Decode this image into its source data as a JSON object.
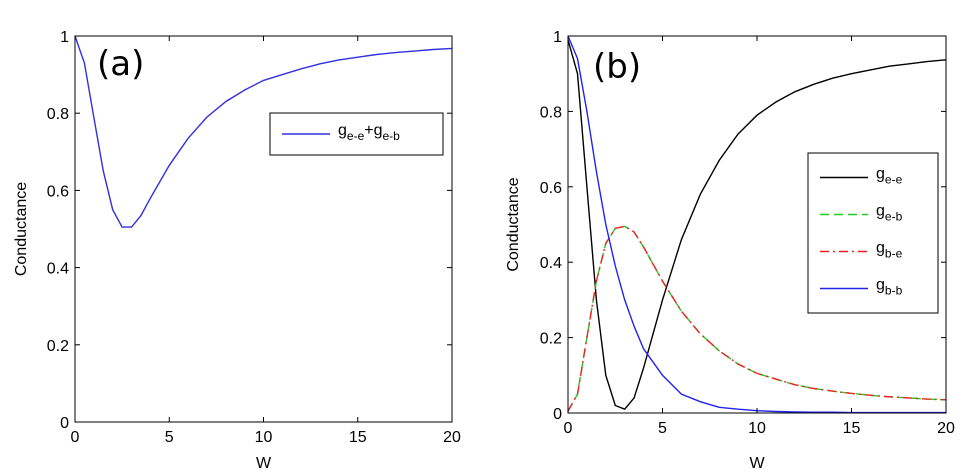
{
  "chart_data": [
    {
      "type": "line",
      "panel_label": "(a)",
      "xlabel": "W",
      "ylabel": "Conductance",
      "xlim": [
        0,
        20
      ],
      "ylim": [
        0,
        1
      ],
      "xticks": [
        "0",
        "5",
        "10",
        "15",
        "20"
      ],
      "yticks": [
        "0",
        "0.2",
        "0.4",
        "0.6",
        "0.8",
        "1"
      ],
      "grid": false,
      "legend_position": "upper-right",
      "series": [
        {
          "name": "g_{e-e}+g_{e-b}",
          "legend_parts": [
            "g",
            "e-e",
            "+g",
            "e-b"
          ],
          "color": "#3030e0",
          "dash": "solid",
          "x": [
            0,
            0.5,
            1,
            1.5,
            2,
            2.5,
            3,
            3.5,
            4,
            5,
            6,
            7,
            8,
            9,
            10,
            11,
            12,
            13,
            14,
            15,
            16,
            17,
            18,
            19,
            20
          ],
          "y": [
            1.0,
            0.93,
            0.79,
            0.65,
            0.55,
            0.505,
            0.505,
            0.535,
            0.58,
            0.665,
            0.735,
            0.79,
            0.83,
            0.86,
            0.885,
            0.9,
            0.915,
            0.928,
            0.938,
            0.945,
            0.952,
            0.957,
            0.961,
            0.965,
            0.968
          ]
        }
      ]
    },
    {
      "type": "line",
      "panel_label": "(b)",
      "xlabel": "W",
      "ylabel": "Conductance",
      "xlim": [
        0,
        20
      ],
      "ylim": [
        0,
        1
      ],
      "xticks": [
        "0",
        "5",
        "10",
        "15",
        "20"
      ],
      "yticks": [
        "0",
        "0.2",
        "0.4",
        "0.6",
        "0.8",
        "1"
      ],
      "grid": false,
      "legend_position": "right",
      "series": [
        {
          "name": "g_{e-e}",
          "legend_parts": [
            "g",
            "e-e"
          ],
          "color": "#000000",
          "dash": "solid",
          "x": [
            0,
            0.5,
            1,
            1.5,
            2,
            2.5,
            3,
            3.5,
            4,
            5,
            6,
            7,
            8,
            9,
            10,
            11,
            12,
            13,
            14,
            15,
            16,
            17,
            18,
            19,
            20
          ],
          "y": [
            0.99,
            0.9,
            0.6,
            0.3,
            0.1,
            0.02,
            0.01,
            0.04,
            0.12,
            0.3,
            0.46,
            0.58,
            0.67,
            0.74,
            0.79,
            0.825,
            0.852,
            0.872,
            0.888,
            0.9,
            0.91,
            0.92,
            0.926,
            0.932,
            0.937
          ]
        },
        {
          "name": "g_{e-b}",
          "legend_parts": [
            "g",
            "e-b"
          ],
          "color": "#22cc22",
          "dash": "dashed",
          "x": [
            0,
            0.5,
            1,
            1.5,
            2,
            2.5,
            3,
            3.5,
            4,
            5,
            6,
            7,
            8,
            9,
            10,
            11,
            12,
            13,
            14,
            15,
            16,
            17,
            18,
            19,
            20
          ],
          "y": [
            0.005,
            0.05,
            0.2,
            0.35,
            0.45,
            0.49,
            0.495,
            0.48,
            0.44,
            0.35,
            0.27,
            0.21,
            0.165,
            0.13,
            0.105,
            0.09,
            0.075,
            0.065,
            0.058,
            0.052,
            0.047,
            0.043,
            0.04,
            0.037,
            0.035
          ]
        },
        {
          "name": "g_{b-e}",
          "legend_parts": [
            "g",
            "b-e"
          ],
          "color": "#ee2222",
          "dash": "dashdot",
          "x": [
            0,
            0.5,
            1,
            1.5,
            2,
            2.5,
            3,
            3.5,
            4,
            5,
            6,
            7,
            8,
            9,
            10,
            11,
            12,
            13,
            14,
            15,
            16,
            17,
            18,
            19,
            20
          ],
          "y": [
            0.005,
            0.05,
            0.2,
            0.35,
            0.45,
            0.49,
            0.495,
            0.48,
            0.44,
            0.35,
            0.27,
            0.21,
            0.165,
            0.13,
            0.105,
            0.09,
            0.075,
            0.065,
            0.058,
            0.052,
            0.047,
            0.043,
            0.04,
            0.037,
            0.035
          ]
        },
        {
          "name": "g_{b-b}",
          "legend_parts": [
            "g",
            "b-b"
          ],
          "color": "#2222ee",
          "dash": "solid",
          "x": [
            0,
            0.5,
            1,
            1.5,
            2,
            2.5,
            3,
            3.5,
            4,
            5,
            6,
            7,
            8,
            9,
            10,
            11,
            12,
            13,
            14,
            15,
            16,
            17,
            18,
            19,
            20
          ],
          "y": [
            1.0,
            0.94,
            0.8,
            0.64,
            0.5,
            0.39,
            0.3,
            0.23,
            0.17,
            0.1,
            0.05,
            0.03,
            0.015,
            0.01,
            0.006,
            0.004,
            0.003,
            0.002,
            0.002,
            0.001,
            0.001,
            0.001,
            0.001,
            0.001,
            0.001
          ]
        }
      ]
    }
  ]
}
